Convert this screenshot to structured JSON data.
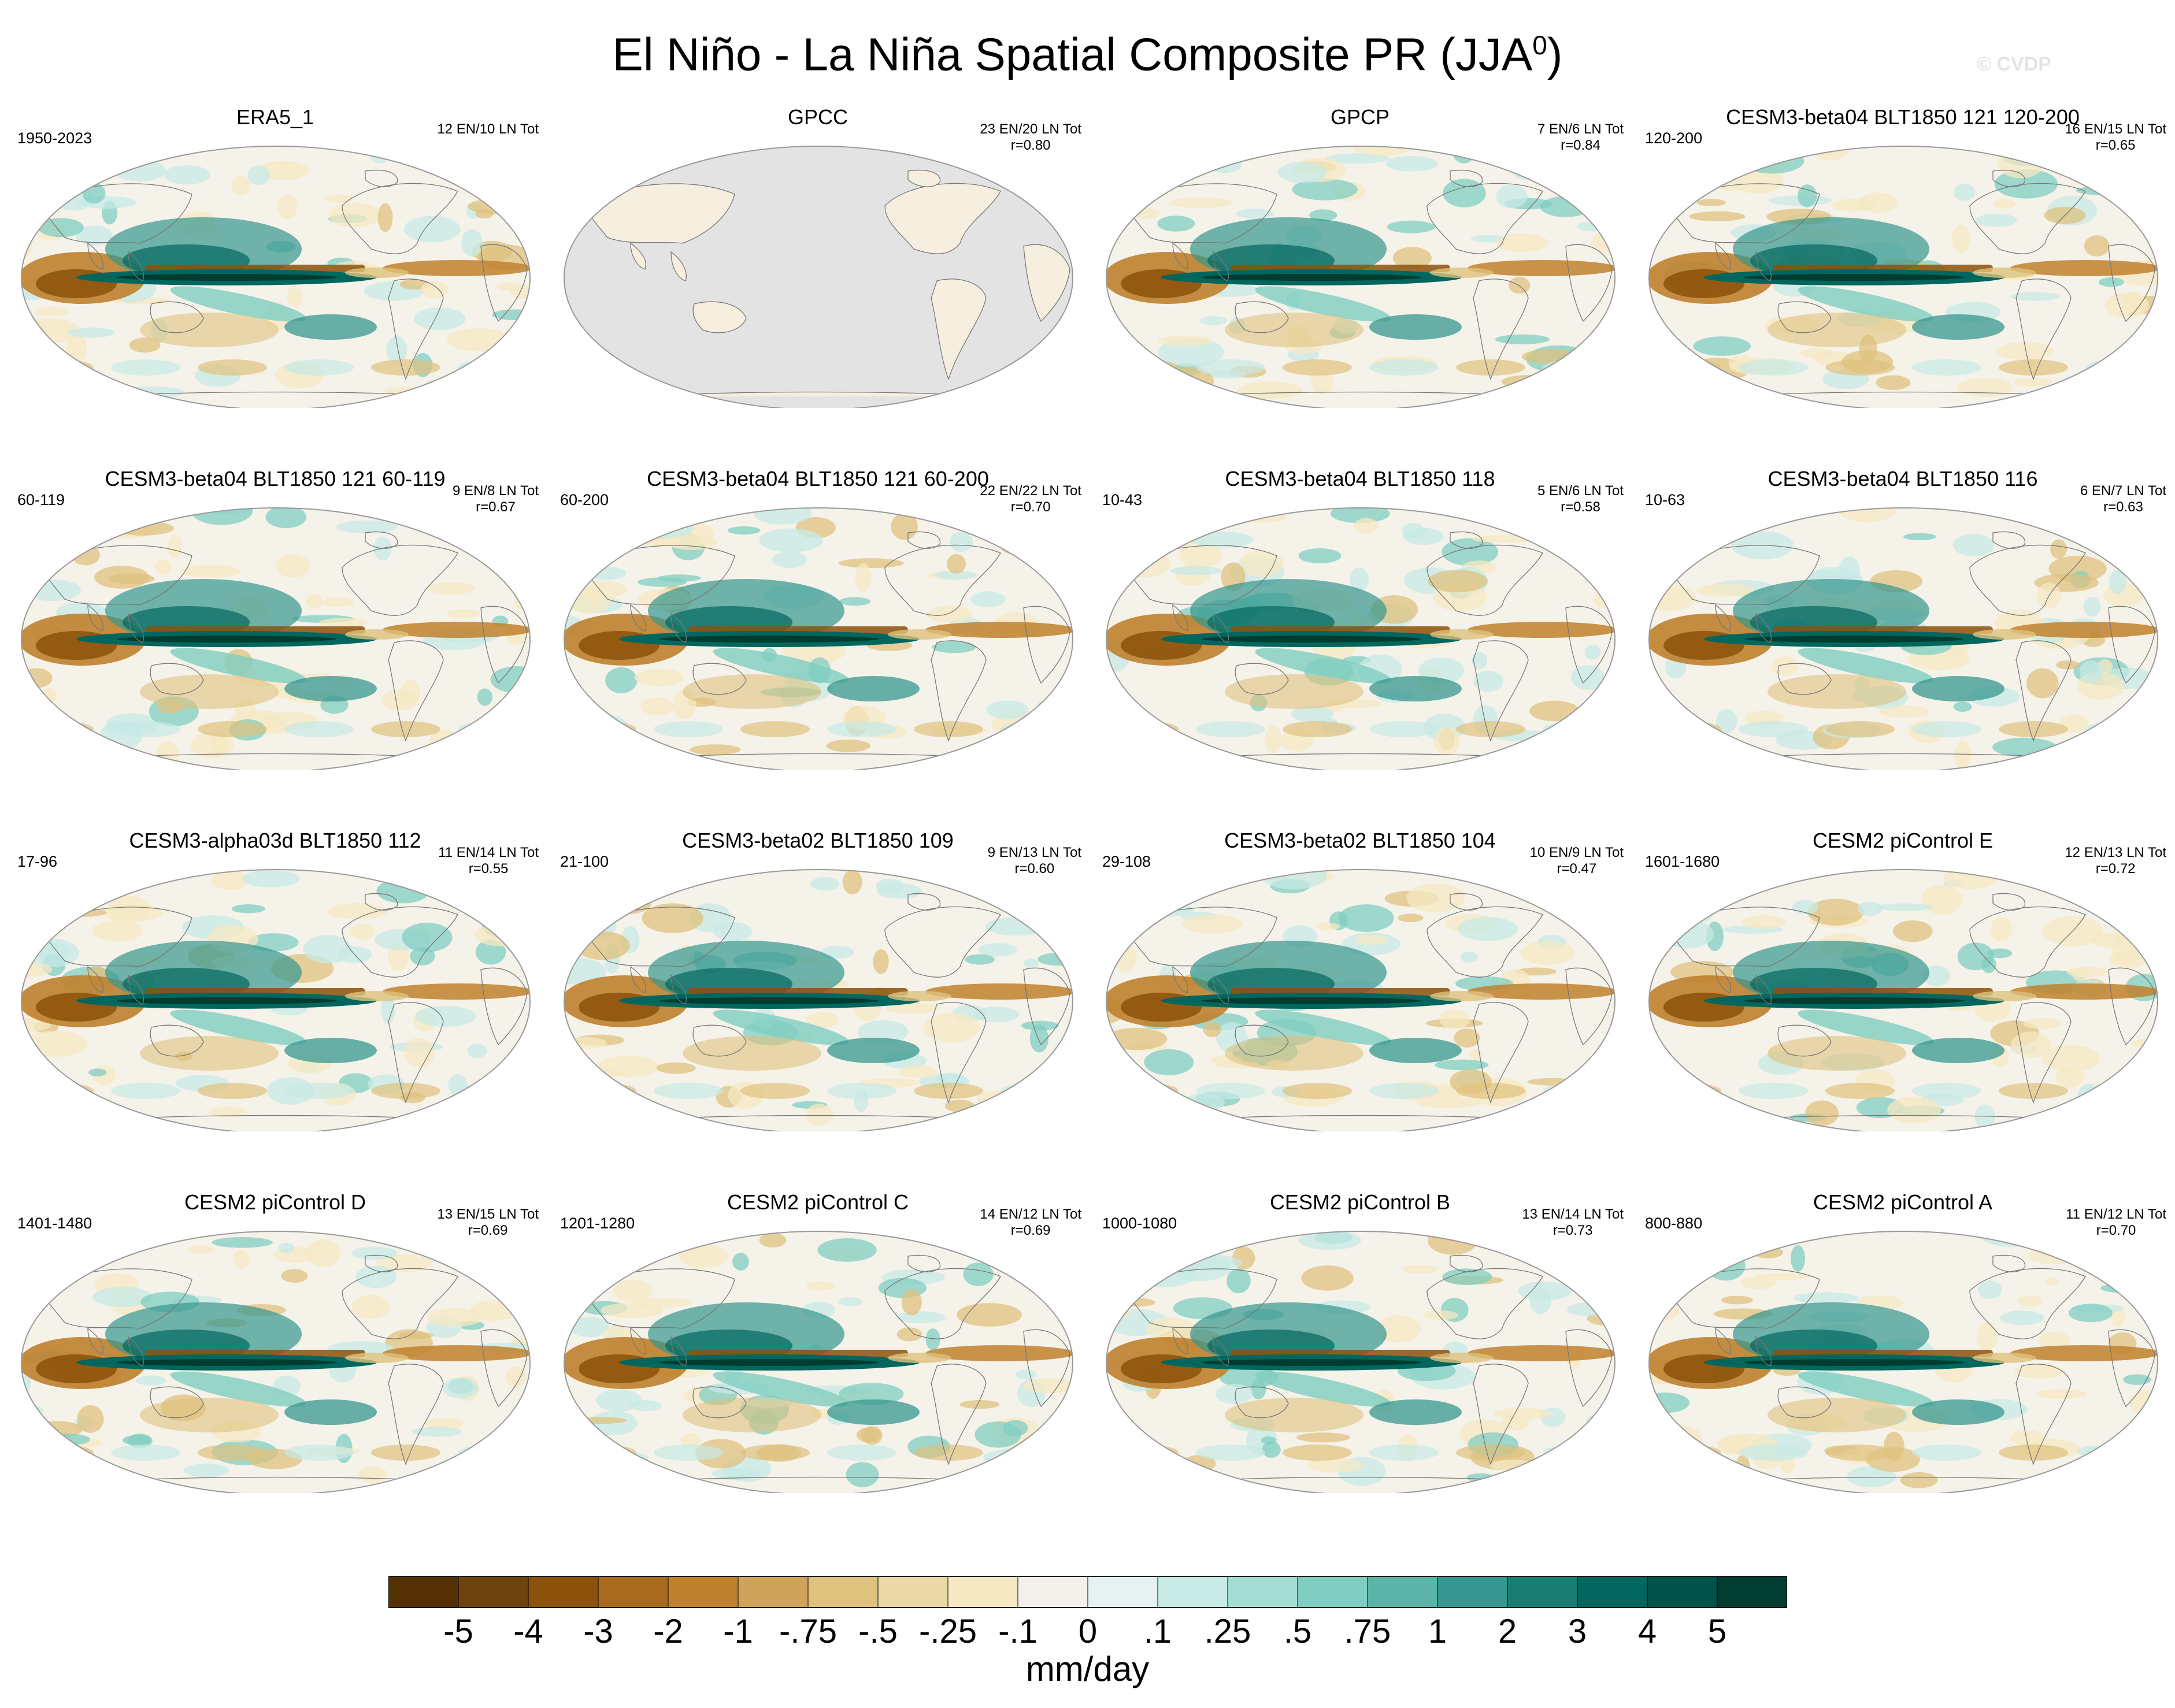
{
  "figure": {
    "title_main": "El Niño - La Niña Spatial Composite PR (JJA",
    "title_sup": "0",
    "title_close": ")",
    "watermark": "© CVDP"
  },
  "panels": [
    {
      "title": "ERA5_1",
      "years": "1950-2023",
      "count": "12 EN/10 LN Tot",
      "r": "",
      "type": "full"
    },
    {
      "title": "GPCC",
      "years": "",
      "count": "23 EN/20 LN Tot",
      "r": "r=0.80",
      "type": "land"
    },
    {
      "title": "GPCP",
      "years": "",
      "count": "7 EN/6 LN Tot",
      "r": "r=0.84",
      "type": "full"
    },
    {
      "title": "CESM3-beta04 BLT1850 121 120-200",
      "years": "120-200",
      "count": "16 EN/15 LN Tot",
      "r": "r=0.65",
      "type": "full"
    },
    {
      "title": "CESM3-beta04 BLT1850 121 60-119",
      "years": "60-119",
      "count": "9 EN/8 LN Tot",
      "r": "r=0.67",
      "type": "full"
    },
    {
      "title": "CESM3-beta04 BLT1850 121 60-200",
      "years": "60-200",
      "count": "22 EN/22 LN Tot",
      "r": "r=0.70",
      "type": "full"
    },
    {
      "title": "CESM3-beta04 BLT1850 118",
      "years": "10-43",
      "count": "5 EN/6 LN Tot",
      "r": "r=0.58",
      "type": "full"
    },
    {
      "title": "CESM3-beta04 BLT1850 116",
      "years": "10-63",
      "count": "6 EN/7 LN Tot",
      "r": "r=0.63",
      "type": "full"
    },
    {
      "title": "CESM3-alpha03d BLT1850 112",
      "years": "17-96",
      "count": "11 EN/14 LN Tot",
      "r": "r=0.55",
      "type": "full"
    },
    {
      "title": "CESM3-beta02 BLT1850 109",
      "years": "21-100",
      "count": "9 EN/13 LN Tot",
      "r": "r=0.60",
      "type": "full"
    },
    {
      "title": "CESM3-beta02 BLT1850 104",
      "years": "29-108",
      "count": "10 EN/9 LN Tot",
      "r": "r=0.47",
      "type": "full"
    },
    {
      "title": "CESM2 piControl E",
      "years": "1601-1680",
      "count": "12 EN/13 LN Tot",
      "r": "r=0.72",
      "type": "full"
    },
    {
      "title": "CESM2 piControl D",
      "years": "1401-1480",
      "count": "13 EN/15 LN Tot",
      "r": "r=0.69",
      "type": "full"
    },
    {
      "title": "CESM2 piControl C",
      "years": "1201-1280",
      "count": "14 EN/12 LN Tot",
      "r": "r=0.69",
      "type": "full"
    },
    {
      "title": "CESM2 piControl B",
      "years": "1000-1080",
      "count": "13 EN/14 LN Tot",
      "r": "r=0.73",
      "type": "full"
    },
    {
      "title": "CESM2 piControl A",
      "years": "800-880",
      "count": "11 EN/12 LN Tot",
      "r": "r=0.70",
      "type": "full"
    }
  ],
  "colorbar": {
    "labels": [
      "-5",
      "-4",
      "-3",
      "-2",
      "-1",
      "-.75",
      "-.5",
      "-.25",
      "-.1",
      "0",
      ".1",
      ".25",
      ".5",
      ".75",
      "1",
      "2",
      "3",
      "4",
      "5"
    ],
    "colors": [
      "#543005",
      "#6e430d",
      "#8c510a",
      "#a86a1d",
      "#bf812d",
      "#d0a35a",
      "#dfc27d",
      "#ecd8a6",
      "#f6e8c3",
      "#f4f1ec",
      "#e6f2f1",
      "#c7eae5",
      "#a3ddd3",
      "#80cdc1",
      "#5ab4a7",
      "#35978f",
      "#1a7d74",
      "#01665e",
      "#01524a",
      "#003c30"
    ],
    "units": "mm/day"
  },
  "palette": {
    "brown_dark": "#8c510a",
    "brown_mid": "#bf812d",
    "tan": "#dfc27d",
    "cream": "#f6e8c3",
    "teal_light": "#c7eae5",
    "teal_mid": "#80cdc1",
    "teal": "#35978f",
    "teal_dark": "#01665e",
    "teal_deep": "#003c30",
    "map_bg": "#f5f2ea",
    "missing": "#e3e3e3",
    "coast": "#777777"
  }
}
